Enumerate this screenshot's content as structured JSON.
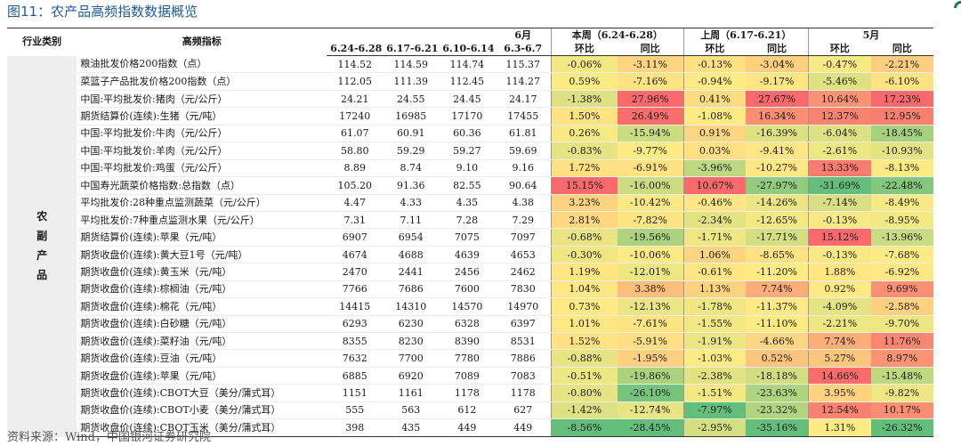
{
  "figure_title": "图11：农产品高频指数数据概览",
  "source": "资料来源：Wind，中国银河证券研究院",
  "header": {
    "category": "行业类别",
    "indicator": "高频指标",
    "periods": [
      "6.24-6.28",
      "6.17-6.21",
      "6.10-6.14"
    ],
    "june_label": "6月",
    "june_range": "6.3-6.7",
    "this_week": "本周（6.24-6.28）",
    "last_week": "上周（6.17-6.21）",
    "may": "5月",
    "mom": "环比",
    "yoy": "同比"
  },
  "category_label": "农\n副\n产\n品",
  "rows": [
    {
      "name": "粮油批发价格200指数（点）",
      "v": [
        "114.52",
        "114.59",
        "114.74",
        "115.37"
      ],
      "c": [
        "-0.06%",
        "-3.11%",
        "-0.13%",
        "-3.04%",
        "-0.47%",
        "-2.21%"
      ]
    },
    {
      "name": "菜篮子产品批发价格200指数（点）",
      "v": [
        "112.05",
        "111.39",
        "112.45",
        "114.27"
      ],
      "c": [
        "0.59%",
        "-7.16%",
        "-0.94%",
        "-9.17%",
        "-5.46%",
        "-6.10%"
      ]
    },
    {
      "name": "中国:平均批发价:猪肉（元/公斤）",
      "v": [
        "24.21",
        "24.55",
        "24.45",
        "24.17"
      ],
      "c": [
        "-1.38%",
        "27.96%",
        "0.41%",
        "27.67%",
        "10.64%",
        "17.23%"
      ]
    },
    {
      "name": "期货结算价(连续):生猪（元/吨）",
      "v": [
        "17240",
        "16985",
        "17170",
        "17455"
      ],
      "c": [
        "1.50%",
        "26.49%",
        "-1.08%",
        "16.34%",
        "12.37%",
        "12.95%"
      ]
    },
    {
      "name": "中国:平均批发价:牛肉（元/公斤）",
      "v": [
        "61.07",
        "60.91",
        "60.36",
        "61.81"
      ],
      "c": [
        "0.26%",
        "-15.94%",
        "0.91%",
        "-16.39%",
        "-6.04%",
        "-18.45%"
      ]
    },
    {
      "name": "中国:平均批发价:羊肉（元/公斤）",
      "v": [
        "58.80",
        "59.29",
        "59.27",
        "59.69"
      ],
      "c": [
        "-0.83%",
        "-9.77%",
        "0.03%",
        "-9.41%",
        "-2.61%",
        "-10.93%"
      ]
    },
    {
      "name": "中国:平均批发价:鸡蛋（元/公斤）",
      "v": [
        "8.89",
        "8.74",
        "9.10",
        "9.16"
      ],
      "c": [
        "1.72%",
        "-6.91%",
        "-3.96%",
        "-10.27%",
        "13.33%",
        "-8.13%"
      ]
    },
    {
      "name": "中国寿光蔬菜价格指数:总指数（点）",
      "v": [
        "105.20",
        "91.36",
        "82.55",
        "90.64"
      ],
      "c": [
        "15.15%",
        "-16.00%",
        "10.67%",
        "-27.97%",
        "-31.69%",
        "-22.48%"
      ]
    },
    {
      "name": "平均批发价:28种重点监测蔬菜（元/公斤）",
      "v": [
        "4.47",
        "4.33",
        "4.35",
        "4.38"
      ],
      "c": [
        "3.23%",
        "-10.42%",
        "-0.46%",
        "-14.26%",
        "-7.14%",
        "-8.49%"
      ]
    },
    {
      "name": "平均批发价:7种重点监测水果（元/公斤）",
      "v": [
        "7.31",
        "7.11",
        "7.28",
        "7.29"
      ],
      "c": [
        "2.81%",
        "-7.82%",
        "-2.34%",
        "-12.65%",
        "-0.13%",
        "-8.95%"
      ]
    },
    {
      "name": "期货结算价(连续):苹果（元/吨）",
      "v": [
        "6907",
        "6954",
        "7075",
        "7097"
      ],
      "c": [
        "-0.68%",
        "-19.56%",
        "-1.71%",
        "-17.71%",
        "15.12%",
        "-13.96%"
      ]
    },
    {
      "name": "期货收盘价(连续):黄大豆1号（元/吨）",
      "v": [
        "4674",
        "4688",
        "4639",
        "4653"
      ],
      "c": [
        "-0.30%",
        "-10.06%",
        "1.06%",
        "-8.65%",
        "-0.13%",
        "-7.68%"
      ]
    },
    {
      "name": "期货收盘价(连续):黄玉米（元/吨）",
      "v": [
        "2470",
        "2441",
        "2456",
        "2462"
      ],
      "c": [
        "1.19%",
        "-12.01%",
        "-0.61%",
        "-11.20%",
        "1.88%",
        "-6.92%"
      ]
    },
    {
      "name": "期货收盘价(连续):棕榈油（元/吨）",
      "v": [
        "7766",
        "7686",
        "7600",
        "7830"
      ],
      "c": [
        "1.04%",
        "3.38%",
        "1.13%",
        "7.74%",
        "0.92%",
        "9.69%"
      ]
    },
    {
      "name": "期货收盘价(连续):棉花（元/吨）",
      "v": [
        "14415",
        "14310",
        "14570",
        "14970"
      ],
      "c": [
        "0.73%",
        "-12.13%",
        "-1.78%",
        "-11.37%",
        "-4.09%",
        "-2.58%"
      ]
    },
    {
      "name": "期货收盘价(连续):白砂糖（元/吨）",
      "v": [
        "6293",
        "6230",
        "6328",
        "6397"
      ],
      "c": [
        "1.01%",
        "-7.61%",
        "-1.55%",
        "-11.10%",
        "-2.21%",
        "-9.70%"
      ]
    },
    {
      "name": "期货收盘价(连续):菜籽油（元/吨）",
      "v": [
        "8355",
        "8230",
        "8390",
        "8531"
      ],
      "c": [
        "1.52%",
        "-5.91%",
        "-1.91%",
        "-4.66%",
        "7.74%",
        "11.76%"
      ]
    },
    {
      "name": "期货收盘价(连续):豆油（元/吨）",
      "v": [
        "7632",
        "7700",
        "7780",
        "7886"
      ],
      "c": [
        "-0.88%",
        "-1.95%",
        "-1.03%",
        "0.52%",
        "5.27%",
        "8.97%"
      ]
    },
    {
      "name": "期货收盘价(连续):苹果（元/吨）",
      "v": [
        "6885",
        "6920",
        "7089",
        "7083"
      ],
      "c": [
        "-0.51%",
        "-19.86%",
        "-2.38%",
        "-18.18%",
        "14.66%",
        "-15.48%"
      ]
    },
    {
      "name": "期货收盘价(连续):CBOT大豆（美分/蒲式耳）",
      "v": [
        "1151",
        "1161",
        "1178",
        "1178"
      ],
      "c": [
        "-0.80%",
        "-26.10%",
        "-1.51%",
        "-23.63%",
        "3.95%",
        "-9.82%"
      ]
    },
    {
      "name": "期货收盘价(连续):CBOT小麦（美分/蒲式耳）",
      "v": [
        "555",
        "563",
        "612",
        "627"
      ],
      "c": [
        "-1.42%",
        "-12.74%",
        "-7.97%",
        "-23.32%",
        "12.54%",
        "10.17%"
      ]
    },
    {
      "name": "期货收盘价(连续):CBOT玉米（美分/蒲式耳）",
      "v": [
        "398",
        "435",
        "449",
        "449"
      ],
      "c": [
        "-8.56%",
        "-28.45%",
        "-2.95%",
        "-35.16%",
        "1.31%",
        "-26.32%"
      ]
    }
  ]
}
